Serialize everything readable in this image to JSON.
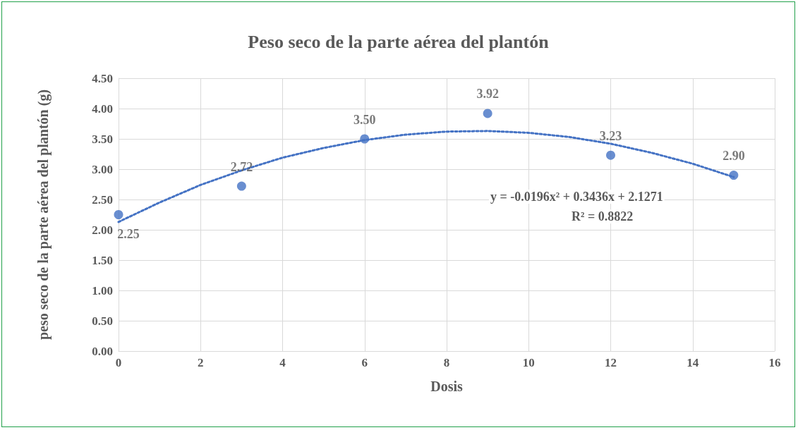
{
  "chart_data": {
    "type": "scatter",
    "title": "Peso seco de la parte aérea del plantón",
    "xlabel": "Dosis",
    "ylabel": "peso seco de la parte aérea del plantón (g)",
    "series": [
      {
        "color": "#4472c4",
        "x": [
          0,
          3,
          6,
          9,
          12,
          15
        ],
        "values": [
          2.25,
          2.72,
          3.5,
          3.92,
          3.23,
          2.9
        ],
        "value_labels": [
          "2.25",
          "2.72",
          "3.50",
          "3.92",
          "3.23",
          "2.90"
        ],
        "marker": "circle"
      },
      {
        "type": "line",
        "color": "#4472c4",
        "x": [
          0,
          1,
          2,
          3,
          4,
          5,
          6,
          7,
          8,
          9,
          10,
          11,
          12,
          13,
          14,
          15
        ],
        "values": [
          2.13,
          2.45,
          2.74,
          2.98,
          3.19,
          3.35,
          3.48,
          3.57,
          3.62,
          3.63,
          3.6,
          3.53,
          3.42,
          3.27,
          3.09,
          2.87
        ],
        "marker": "none",
        "line_style": "dotted"
      }
    ],
    "annotations": [
      "y = -0.0196x² + 0.3436x + 2.1271",
      "R² = 0.8822"
    ],
    "xlim": [
      0,
      16
    ],
    "xticks": [
      0,
      2,
      4,
      6,
      8,
      10,
      12,
      14,
      16
    ],
    "ylim": [
      0,
      4.5
    ],
    "yticks": [
      {
        "value": 0,
        "label": "0.00"
      },
      {
        "value": 0.5,
        "label": "0.50"
      },
      {
        "value": 1,
        "label": "1.00"
      },
      {
        "value": 1.5,
        "label": "1.50"
      },
      {
        "value": 2,
        "label": "2.00"
      },
      {
        "value": 2.5,
        "label": "2.50"
      },
      {
        "value": 3,
        "label": "3.00"
      },
      {
        "value": 3.5,
        "label": "3.50"
      },
      {
        "value": 4,
        "label": "4.00"
      },
      {
        "value": 4.5,
        "label": "4.50"
      }
    ],
    "grid": true
  }
}
